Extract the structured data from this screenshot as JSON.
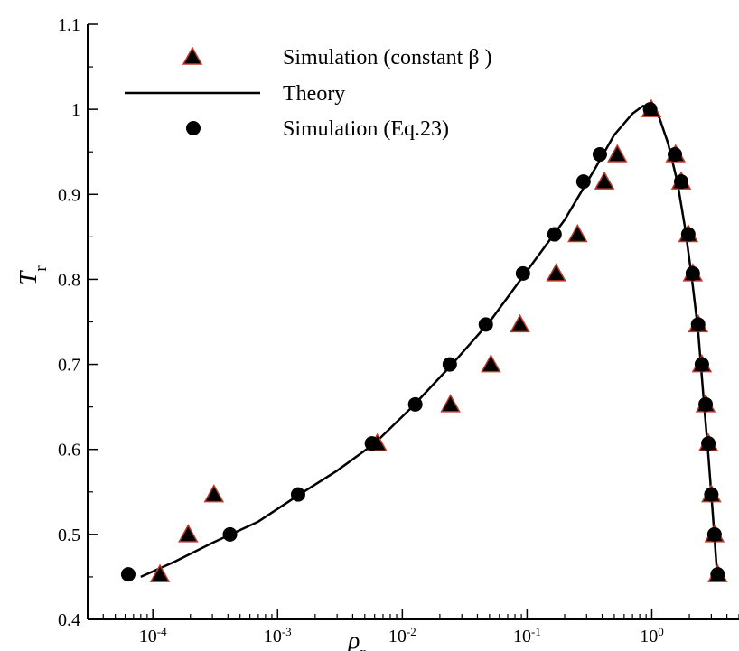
{
  "chart_data": {
    "type": "scatter",
    "x_scale": "log",
    "xlim": [
      3e-05,
      5
    ],
    "ylim": [
      0.4,
      1.1
    ],
    "grid": false,
    "legend_position": "top-left",
    "xlabel": "ρ",
    "xlabel_sub": "r",
    "ylabel": "T",
    "ylabel_sub": "r",
    "y_ticks": [
      0.4,
      0.5,
      0.6,
      0.7,
      0.8,
      0.9,
      1.0,
      1.1
    ],
    "y_tick_labels": [
      "0.4",
      "0.5",
      "0.6",
      "0.7",
      "0.8",
      "0.9",
      "1",
      "1.1"
    ],
    "x_ticks": [
      {
        "value": 0.0001,
        "base": "10",
        "exp": "-4"
      },
      {
        "value": 0.001,
        "base": "10",
        "exp": "-3"
      },
      {
        "value": 0.01,
        "base": "10",
        "exp": "-2"
      },
      {
        "value": 0.1,
        "base": "10",
        "exp": "-1"
      },
      {
        "value": 1,
        "base": "10",
        "exp": "0"
      }
    ],
    "series": [
      {
        "name": "Simulation (constant β )",
        "marker": "triangle",
        "color": "#000000",
        "edge_color": "#c0392b",
        "points": [
          [
            0.000114,
            0.453
          ],
          [
            0.000192,
            0.5
          ],
          [
            0.000309,
            0.547
          ],
          [
            0.0063,
            0.607
          ],
          [
            0.0243,
            0.653
          ],
          [
            0.0513,
            0.7
          ],
          [
            0.0877,
            0.747
          ],
          [
            0.171,
            0.807
          ],
          [
            0.254,
            0.853
          ],
          [
            0.417,
            0.915
          ],
          [
            0.529,
            0.947
          ],
          [
            0.99,
            1.0
          ],
          [
            1.55,
            0.947
          ],
          [
            1.72,
            0.915
          ],
          [
            1.96,
            0.853
          ],
          [
            2.13,
            0.807
          ],
          [
            2.35,
            0.747
          ],
          [
            2.52,
            0.7
          ],
          [
            2.7,
            0.653
          ],
          [
            2.84,
            0.607
          ],
          [
            3.0,
            0.547
          ],
          [
            3.18,
            0.5
          ],
          [
            3.37,
            0.453
          ]
        ]
      },
      {
        "name": "Theory",
        "marker": "line",
        "color": "#000000",
        "points": [
          [
            8e-05,
            0.45
          ],
          [
            0.00015,
            0.468
          ],
          [
            0.0003,
            0.49
          ],
          [
            0.0007,
            0.515
          ],
          [
            0.0015,
            0.547
          ],
          [
            0.003,
            0.575
          ],
          [
            0.006,
            0.607
          ],
          [
            0.012,
            0.65
          ],
          [
            0.025,
            0.7
          ],
          [
            0.05,
            0.75
          ],
          [
            0.1,
            0.81
          ],
          [
            0.2,
            0.87
          ],
          [
            0.35,
            0.93
          ],
          [
            0.5,
            0.97
          ],
          [
            0.7,
            0.995
          ],
          [
            0.85,
            1.004
          ],
          [
            1.0,
            1.003
          ],
          [
            1.15,
            0.99
          ],
          [
            1.35,
            0.96
          ],
          [
            1.6,
            0.915
          ],
          [
            1.85,
            0.86
          ],
          [
            2.1,
            0.8
          ],
          [
            2.35,
            0.74
          ],
          [
            2.6,
            0.66
          ],
          [
            2.85,
            0.59
          ],
          [
            3.1,
            0.52
          ],
          [
            3.35,
            0.45
          ]
        ]
      },
      {
        "name": "Simulation (Eq.23)",
        "marker": "circle",
        "color": "#000000",
        "points": [
          [
            6.35e-05,
            0.453
          ],
          [
            0.000415,
            0.5
          ],
          [
            0.00146,
            0.547
          ],
          [
            0.0057,
            0.607
          ],
          [
            0.0127,
            0.653
          ],
          [
            0.024,
            0.7
          ],
          [
            0.0467,
            0.747
          ],
          [
            0.0927,
            0.807
          ],
          [
            0.166,
            0.853
          ],
          [
            0.283,
            0.915
          ],
          [
            0.383,
            0.947
          ],
          [
            0.97,
            1.0
          ],
          [
            1.53,
            0.947
          ],
          [
            1.72,
            0.915
          ],
          [
            1.96,
            0.853
          ],
          [
            2.13,
            0.807
          ],
          [
            2.35,
            0.747
          ],
          [
            2.52,
            0.7
          ],
          [
            2.7,
            0.653
          ],
          [
            2.84,
            0.607
          ],
          [
            3.0,
            0.547
          ],
          [
            3.18,
            0.5
          ],
          [
            3.37,
            0.453
          ]
        ]
      }
    ]
  }
}
